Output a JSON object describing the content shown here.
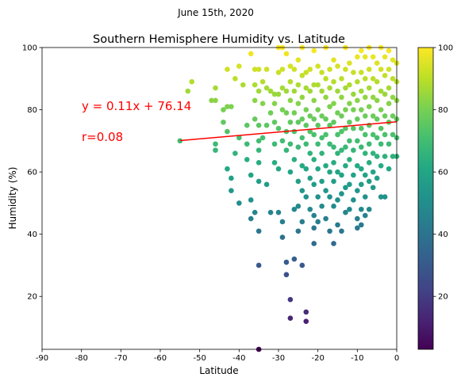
{
  "chart_data": {
    "type": "scatter",
    "suptitle": "June 15th, 2020",
    "title": "Southern Hemisphere Humidity vs. Latitude",
    "xlabel": "Latitude",
    "ylabel": "Humidity (%)",
    "xlim": [
      -90,
      0
    ],
    "ylim": [
      3,
      100
    ],
    "xticks": [
      -90,
      -80,
      -70,
      -60,
      -50,
      -40,
      -30,
      -20,
      -10,
      0
    ],
    "yticks": [
      20,
      40,
      60,
      80,
      100
    ],
    "grid": false,
    "colormap": "viridis",
    "colorbar": {
      "min": 3,
      "max": 100,
      "ticks": [
        20,
        40,
        60,
        80,
        100
      ]
    },
    "regression": {
      "slope": 0.11,
      "intercept": 76.14,
      "x_range": [
        -55,
        0
      ],
      "color": "#ff0000",
      "equation_label": "y = 0.11x + 76.14",
      "r_label": "r=0.08"
    },
    "points": [
      [
        -55,
        70
      ],
      [
        -52,
        89
      ],
      [
        -53,
        86
      ],
      [
        -47,
        83
      ],
      [
        -46,
        87
      ],
      [
        -46,
        69
      ],
      [
        -46,
        67
      ],
      [
        -46,
        83
      ],
      [
        -44,
        80
      ],
      [
        -44,
        76
      ],
      [
        -43,
        93
      ],
      [
        -43,
        81
      ],
      [
        -43,
        73
      ],
      [
        -43,
        61
      ],
      [
        -42,
        58
      ],
      [
        -42,
        54
      ],
      [
        -42,
        81
      ],
      [
        -41,
        90
      ],
      [
        -41,
        66
      ],
      [
        -40,
        50
      ],
      [
        -40,
        71
      ],
      [
        -40,
        94
      ],
      [
        -39,
        88
      ],
      [
        -38,
        75
      ],
      [
        -38,
        69
      ],
      [
        -38,
        64
      ],
      [
        -37,
        98
      ],
      [
        -37,
        59
      ],
      [
        -37,
        51
      ],
      [
        -37,
        45
      ],
      [
        -36,
        93
      ],
      [
        -36,
        88
      ],
      [
        -36,
        83
      ],
      [
        -36,
        77
      ],
      [
        -36,
        47
      ],
      [
        -35,
        93
      ],
      [
        -35,
        86
      ],
      [
        -35,
        75
      ],
      [
        -35,
        70
      ],
      [
        -35,
        67
      ],
      [
        -35,
        63
      ],
      [
        -35,
        57
      ],
      [
        -35,
        41
      ],
      [
        -35,
        30
      ],
      [
        -35,
        3
      ],
      [
        -34,
        89
      ],
      [
        -34,
        82
      ],
      [
        -34,
        71
      ],
      [
        -33,
        93
      ],
      [
        -33,
        87
      ],
      [
        -33,
        75
      ],
      [
        -33,
        56
      ],
      [
        -32,
        86
      ],
      [
        -32,
        79
      ],
      [
        -32,
        47
      ],
      [
        -31,
        85
      ],
      [
        -31,
        82
      ],
      [
        -31,
        76
      ],
      [
        -31,
        69
      ],
      [
        -31,
        63
      ],
      [
        -30,
        100
      ],
      [
        -30,
        92
      ],
      [
        -30,
        85
      ],
      [
        -30,
        74
      ],
      [
        -30,
        61
      ],
      [
        -30,
        47
      ],
      [
        -29,
        100
      ],
      [
        -29,
        93
      ],
      [
        -29,
        87
      ],
      [
        -29,
        80
      ],
      [
        -29,
        70
      ],
      [
        -29,
        44
      ],
      [
        -29,
        39
      ],
      [
        -28,
        98
      ],
      [
        -28,
        86
      ],
      [
        -28,
        79
      ],
      [
        -28,
        73
      ],
      [
        -28,
        67
      ],
      [
        -28,
        31
      ],
      [
        -28,
        27
      ],
      [
        -27,
        94
      ],
      [
        -27,
        89
      ],
      [
        -27,
        83
      ],
      [
        -27,
        76
      ],
      [
        -27,
        69
      ],
      [
        -27,
        60
      ],
      [
        -27,
        19
      ],
      [
        -27,
        13
      ],
      [
        -26,
        93
      ],
      [
        -26,
        86
      ],
      [
        -26,
        79
      ],
      [
        -26,
        73
      ],
      [
        -26,
        64
      ],
      [
        -26,
        48
      ],
      [
        -26,
        32
      ],
      [
        -25,
        96
      ],
      [
        -25,
        88
      ],
      [
        -25,
        82
      ],
      [
        -25,
        76
      ],
      [
        -25,
        68
      ],
      [
        -25,
        57
      ],
      [
        -25,
        49
      ],
      [
        -25,
        41
      ],
      [
        -24,
        100
      ],
      [
        -24,
        91
      ],
      [
        -24,
        84
      ],
      [
        -24,
        77
      ],
      [
        -24,
        71
      ],
      [
        -24,
        62
      ],
      [
        -24,
        54
      ],
      [
        -24,
        44
      ],
      [
        -24,
        30
      ],
      [
        -23,
        92
      ],
      [
        -23,
        87
      ],
      [
        -23,
        80
      ],
      [
        -23,
        75
      ],
      [
        -23,
        69
      ],
      [
        -23,
        61
      ],
      [
        -23,
        52
      ],
      [
        -23,
        15
      ],
      [
        -23,
        12
      ],
      [
        -22,
        93
      ],
      [
        -22,
        86
      ],
      [
        -22,
        78
      ],
      [
        -22,
        73
      ],
      [
        -22,
        66
      ],
      [
        -22,
        58
      ],
      [
        -22,
        48
      ],
      [
        -21,
        99
      ],
      [
        -21,
        88
      ],
      [
        -21,
        83
      ],
      [
        -21,
        77
      ],
      [
        -21,
        72
      ],
      [
        -21,
        64
      ],
      [
        -21,
        56
      ],
      [
        -21,
        46
      ],
      [
        -21,
        42
      ],
      [
        -21,
        37
      ],
      [
        -20,
        94
      ],
      [
        -20,
        88
      ],
      [
        -20,
        80
      ],
      [
        -20,
        75
      ],
      [
        -20,
        69
      ],
      [
        -20,
        61
      ],
      [
        -20,
        52
      ],
      [
        -20,
        44
      ],
      [
        -19,
        92
      ],
      [
        -19,
        86
      ],
      [
        -19,
        78
      ],
      [
        -19,
        71
      ],
      [
        -19,
        66
      ],
      [
        -19,
        57
      ],
      [
        -19,
        49
      ],
      [
        -18,
        100
      ],
      [
        -18,
        90
      ],
      [
        -18,
        84
      ],
      [
        -18,
        77
      ],
      [
        -18,
        72
      ],
      [
        -18,
        62
      ],
      [
        -18,
        54
      ],
      [
        -18,
        45
      ],
      [
        -17,
        93
      ],
      [
        -17,
        87
      ],
      [
        -17,
        81
      ],
      [
        -17,
        75
      ],
      [
        -17,
        69
      ],
      [
        -17,
        60
      ],
      [
        -17,
        52
      ],
      [
        -17,
        41
      ],
      [
        -16,
        96
      ],
      [
        -16,
        89
      ],
      [
        -16,
        82
      ],
      [
        -16,
        76
      ],
      [
        -16,
        68
      ],
      [
        -16,
        63
      ],
      [
        -16,
        57
      ],
      [
        -16,
        49
      ],
      [
        -16,
        37
      ],
      [
        -15,
        94
      ],
      [
        -15,
        86
      ],
      [
        -15,
        79
      ],
      [
        -15,
        72
      ],
      [
        -15,
        66
      ],
      [
        -15,
        60
      ],
      [
        -15,
        51
      ],
      [
        -15,
        43
      ],
      [
        -14,
        90
      ],
      [
        -14,
        84
      ],
      [
        -14,
        78
      ],
      [
        -14,
        73
      ],
      [
        -14,
        67
      ],
      [
        -14,
        59
      ],
      [
        -14,
        53
      ],
      [
        -14,
        41
      ],
      [
        -13,
        100
      ],
      [
        -13,
        93
      ],
      [
        -13,
        87
      ],
      [
        -13,
        80
      ],
      [
        -13,
        74
      ],
      [
        -13,
        68
      ],
      [
        -13,
        62
      ],
      [
        -13,
        55
      ],
      [
        -13,
        47
      ],
      [
        -12,
        95
      ],
      [
        -12,
        88
      ],
      [
        -12,
        82
      ],
      [
        -12,
        76
      ],
      [
        -12,
        70
      ],
      [
        -12,
        64
      ],
      [
        -12,
        56
      ],
      [
        -12,
        48
      ],
      [
        -11,
        92
      ],
      [
        -11,
        85
      ],
      [
        -11,
        80
      ],
      [
        -11,
        74
      ],
      [
        -11,
        67
      ],
      [
        -11,
        59
      ],
      [
        -11,
        51
      ],
      [
        -10,
        97
      ],
      [
        -10,
        89
      ],
      [
        -10,
        83
      ],
      [
        -10,
        77
      ],
      [
        -10,
        70
      ],
      [
        -10,
        62
      ],
      [
        -10,
        54
      ],
      [
        -10,
        45
      ],
      [
        -10,
        42
      ],
      [
        -9,
        99
      ],
      [
        -9,
        92
      ],
      [
        -9,
        86
      ],
      [
        -9,
        80
      ],
      [
        -9,
        74
      ],
      [
        -9,
        68
      ],
      [
        -9,
        61
      ],
      [
        -9,
        56
      ],
      [
        -9,
        48
      ],
      [
        -9,
        43
      ],
      [
        -8,
        97
      ],
      [
        -8,
        90
      ],
      [
        -8,
        84
      ],
      [
        -8,
        78
      ],
      [
        -8,
        72
      ],
      [
        -8,
        66
      ],
      [
        -8,
        59
      ],
      [
        -8,
        52
      ],
      [
        -8,
        46
      ],
      [
        -7,
        100
      ],
      [
        -7,
        93
      ],
      [
        -7,
        87
      ],
      [
        -7,
        81
      ],
      [
        -7,
        75
      ],
      [
        -7,
        69
      ],
      [
        -7,
        63
      ],
      [
        -7,
        57
      ],
      [
        -7,
        48
      ],
      [
        -6,
        97
      ],
      [
        -6,
        90
      ],
      [
        -6,
        84
      ],
      [
        -6,
        78
      ],
      [
        -6,
        72
      ],
      [
        -6,
        66
      ],
      [
        -6,
        60
      ],
      [
        -6,
        55
      ],
      [
        -5,
        95
      ],
      [
        -5,
        89
      ],
      [
        -5,
        83
      ],
      [
        -5,
        77
      ],
      [
        -5,
        71
      ],
      [
        -5,
        65
      ],
      [
        -5,
        58
      ],
      [
        -4,
        100
      ],
      [
        -4,
        93
      ],
      [
        -4,
        86
      ],
      [
        -4,
        80
      ],
      [
        -4,
        74
      ],
      [
        -4,
        69
      ],
      [
        -4,
        62
      ],
      [
        -4,
        52
      ],
      [
        -3,
        97
      ],
      [
        -3,
        91
      ],
      [
        -3,
        85
      ],
      [
        -3,
        78
      ],
      [
        -3,
        72
      ],
      [
        -3,
        65
      ],
      [
        -3,
        52
      ],
      [
        -2,
        99
      ],
      [
        -2,
        93
      ],
      [
        -2,
        87
      ],
      [
        -2,
        82
      ],
      [
        -2,
        76
      ],
      [
        -2,
        69
      ],
      [
        -2,
        61
      ],
      [
        -1,
        96
      ],
      [
        -1,
        90
      ],
      [
        -1,
        84
      ],
      [
        -1,
        78
      ],
      [
        -1,
        72
      ],
      [
        -1,
        65
      ],
      [
        0,
        95
      ],
      [
        0,
        89
      ],
      [
        0,
        83
      ],
      [
        0,
        77
      ],
      [
        0,
        71
      ],
      [
        0,
        65
      ]
    ]
  }
}
